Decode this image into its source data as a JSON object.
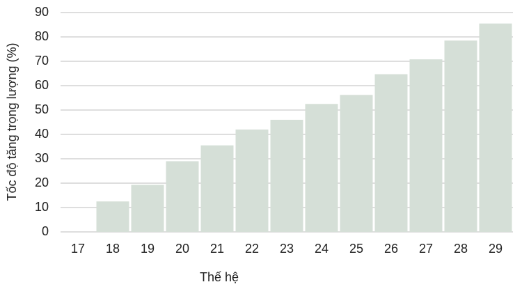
{
  "chart_data": {
    "type": "bar",
    "x_label": "Thế hệ",
    "y_label": "Tốc độ tăng trọng lượng (%)",
    "categories": [
      17,
      18,
      19,
      20,
      21,
      22,
      23,
      24,
      25,
      26,
      27,
      28,
      29
    ],
    "values": [
      0,
      12.5,
      19.3,
      29,
      35.5,
      42,
      46,
      52.5,
      56.2,
      64.7,
      70.8,
      78.5,
      85.5
    ],
    "color": "#d5dfd7",
    "ylim": [
      0,
      90
    ],
    "yticks": [
      0,
      10,
      20,
      30,
      40,
      50,
      60,
      70,
      80,
      90
    ],
    "grid": true
  }
}
